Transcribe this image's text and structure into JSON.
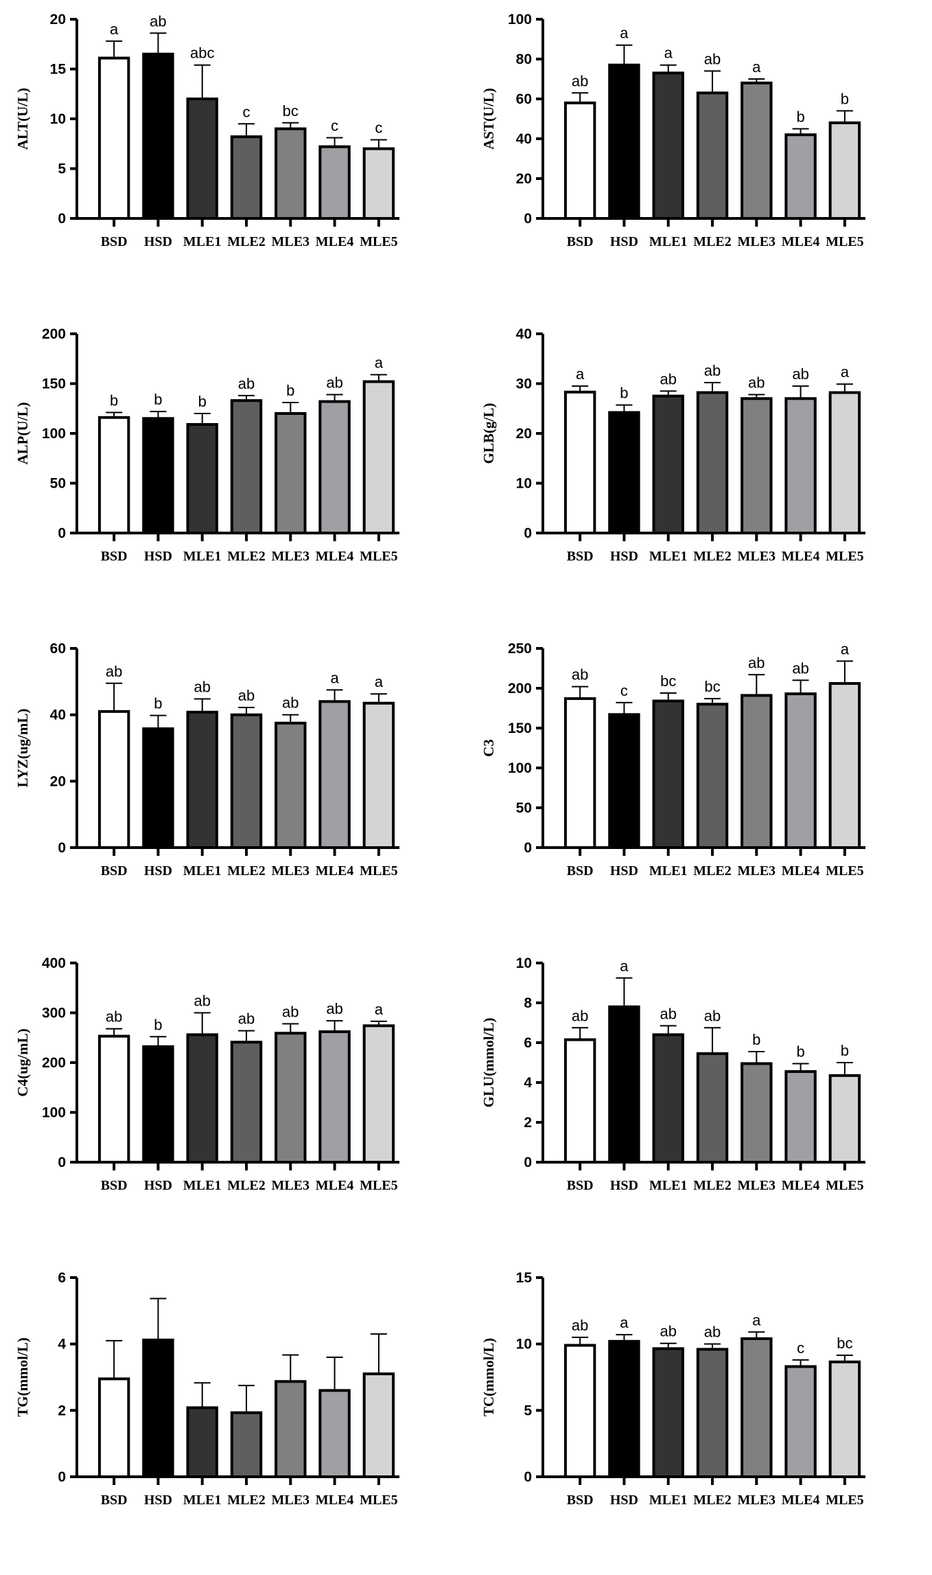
{
  "chart_data": [
    {
      "type": "bar",
      "ylabel": "ALT(U/L)",
      "ylim": [
        0,
        20
      ],
      "yticks": [
        0,
        5,
        10,
        15,
        20
      ],
      "categories": [
        "BSD",
        "HSD",
        "MLE1",
        "MLE2",
        "MLE3",
        "MLE4",
        "MLE5"
      ],
      "values": [
        16.1,
        16.5,
        12.0,
        8.2,
        9.0,
        7.2,
        7.0
      ],
      "errors": [
        1.7,
        2.1,
        3.4,
        1.3,
        0.6,
        0.9,
        0.9
      ],
      "letters": [
        "a",
        "ab",
        "abc",
        "c",
        "bc",
        "c",
        "c"
      ]
    },
    {
      "type": "bar",
      "ylabel": "AST(U/L)",
      "ylim": [
        0,
        100
      ],
      "yticks": [
        0,
        20,
        40,
        60,
        80,
        100
      ],
      "categories": [
        "BSD",
        "HSD",
        "MLE1",
        "MLE2",
        "MLE3",
        "MLE4",
        "MLE5"
      ],
      "values": [
        58,
        77,
        73,
        63,
        68,
        42,
        48
      ],
      "errors": [
        5,
        10,
        4,
        11,
        2,
        3,
        6
      ],
      "letters": [
        "ab",
        "a",
        "a",
        "ab",
        "a",
        "b",
        "b"
      ]
    },
    {
      "type": "bar",
      "ylabel": "ALP(U/L)",
      "ylim": [
        0,
        200
      ],
      "yticks": [
        0,
        50,
        100,
        150,
        200
      ],
      "categories": [
        "BSD",
        "HSD",
        "MLE1",
        "MLE2",
        "MLE3",
        "MLE4",
        "MLE5"
      ],
      "values": [
        116,
        115,
        109,
        133,
        120,
        132,
        152
      ],
      "errors": [
        5,
        7,
        11,
        5,
        11,
        7,
        7
      ],
      "letters": [
        "b",
        "b",
        "b",
        "ab",
        "b",
        "ab",
        "a"
      ]
    },
    {
      "type": "bar",
      "ylabel": "GLB(g/L)",
      "ylim": [
        0,
        40
      ],
      "yticks": [
        0,
        10,
        20,
        30,
        40
      ],
      "categories": [
        "BSD",
        "HSD",
        "MLE1",
        "MLE2",
        "MLE3",
        "MLE4",
        "MLE5"
      ],
      "values": [
        28.3,
        24.2,
        27.5,
        28.2,
        27.0,
        27.0,
        28.2
      ],
      "errors": [
        1.2,
        1.5,
        1.0,
        2.0,
        0.8,
        2.5,
        1.7
      ],
      "letters": [
        "a",
        "b",
        "ab",
        "ab",
        "ab",
        "ab",
        "a"
      ]
    },
    {
      "type": "bar",
      "ylabel": "LYZ(ug/mL)",
      "ylim": [
        0,
        60
      ],
      "yticks": [
        0,
        20,
        40,
        60
      ],
      "categories": [
        "BSD",
        "HSD",
        "MLE1",
        "MLE2",
        "MLE3",
        "MLE4",
        "MLE5"
      ],
      "values": [
        41,
        35.8,
        40.8,
        40,
        37.5,
        44,
        43.5
      ],
      "errors": [
        8.5,
        4,
        4,
        2.2,
        2.5,
        3.5,
        2.8
      ],
      "letters": [
        "ab",
        "b",
        "ab",
        "ab",
        "ab",
        "a",
        "a"
      ]
    },
    {
      "type": "bar",
      "ylabel": "C3",
      "ylim": [
        0,
        250
      ],
      "yticks": [
        0,
        50,
        100,
        150,
        200,
        250
      ],
      "categories": [
        "BSD",
        "HSD",
        "MLE1",
        "MLE2",
        "MLE3",
        "MLE4",
        "MLE5"
      ],
      "values": [
        187,
        167,
        184,
        180,
        191,
        193,
        206
      ],
      "errors": [
        15,
        15,
        10,
        7,
        26,
        17,
        28
      ],
      "letters": [
        "ab",
        "c",
        "bc",
        "bc",
        "ab",
        "ab",
        "a"
      ]
    },
    {
      "type": "bar",
      "ylabel": "C4(ug/mL)",
      "ylim": [
        0,
        400
      ],
      "yticks": [
        0,
        100,
        200,
        300,
        400
      ],
      "categories": [
        "BSD",
        "HSD",
        "MLE1",
        "MLE2",
        "MLE3",
        "MLE4",
        "MLE5"
      ],
      "values": [
        253,
        232,
        256,
        241,
        259,
        262,
        274
      ],
      "errors": [
        15,
        20,
        44,
        23,
        19,
        22,
        9
      ],
      "letters": [
        "ab",
        "b",
        "ab",
        "ab",
        "ab",
        "ab",
        "a"
      ]
    },
    {
      "type": "bar",
      "ylabel": "GLU(mmol/L)",
      "ylim": [
        0,
        10
      ],
      "yticks": [
        0,
        2,
        4,
        6,
        8,
        10
      ],
      "categories": [
        "BSD",
        "HSD",
        "MLE1",
        "MLE2",
        "MLE3",
        "MLE4",
        "MLE5"
      ],
      "values": [
        6.15,
        7.8,
        6.4,
        5.45,
        4.95,
        4.55,
        4.35
      ],
      "errors": [
        0.6,
        1.45,
        0.45,
        1.3,
        0.6,
        0.4,
        0.65
      ],
      "letters": [
        "ab",
        "a",
        "ab",
        "ab",
        "b",
        "b",
        "b"
      ]
    },
    {
      "type": "bar",
      "ylabel": "TG(mmol/L)",
      "ylim": [
        0,
        6
      ],
      "yticks": [
        0,
        2,
        4,
        6
      ],
      "categories": [
        "BSD",
        "HSD",
        "MLE1",
        "MLE2",
        "MLE3",
        "MLE4",
        "MLE5"
      ],
      "values": [
        2.95,
        4.12,
        2.08,
        1.93,
        2.87,
        2.6,
        3.1
      ],
      "errors": [
        1.15,
        1.25,
        0.75,
        0.82,
        0.8,
        1.0,
        1.2
      ],
      "letters": [
        "",
        "",
        "",
        "",
        "",
        "",
        ""
      ]
    },
    {
      "type": "bar",
      "ylabel": "TC(mmol/L)",
      "ylim": [
        0,
        15
      ],
      "yticks": [
        0,
        5,
        10,
        15
      ],
      "categories": [
        "BSD",
        "HSD",
        "MLE1",
        "MLE2",
        "MLE3",
        "MLE4",
        "MLE5"
      ],
      "values": [
        9.9,
        10.2,
        9.65,
        9.6,
        10.4,
        8.3,
        8.65
      ],
      "errors": [
        0.6,
        0.5,
        0.4,
        0.4,
        0.5,
        0.5,
        0.5
      ],
      "letters": [
        "ab",
        "a",
        "ab",
        "ab",
        "a",
        "c",
        "bc"
      ]
    }
  ],
  "colors": {
    "bars": [
      "#ffffff",
      "#000000",
      "#333333",
      "#5f5f5f",
      "#808080",
      "#a0a0a4",
      "#d4d4d4"
    ],
    "axis": "#000000"
  },
  "grid": false,
  "legend": "none"
}
